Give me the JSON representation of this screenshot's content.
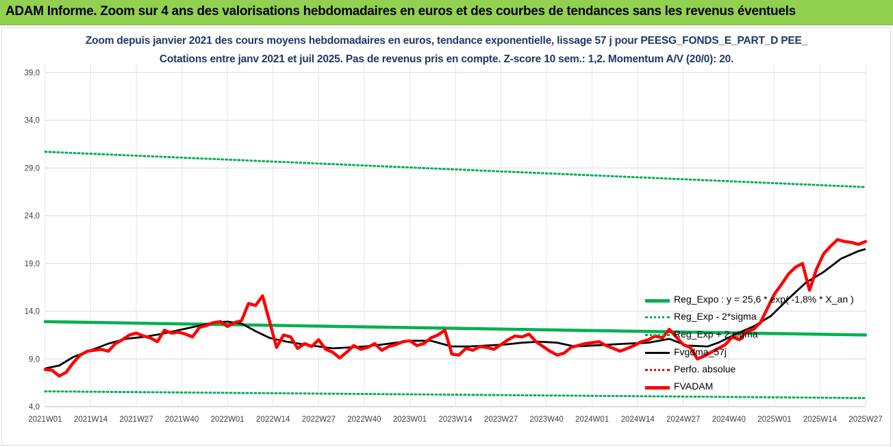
{
  "banner": {
    "title": "ADAM Informe. Zoom sur 4 ans des valorisations hebdomadaires en euros et des courbes de tendances sans les revenus éventuels"
  },
  "colors": {
    "banner_bg": "#92d050",
    "subtitle": "#1f3864",
    "trend_green": "#00b050",
    "sigma_green": "#00b050",
    "smooth_black": "#000000",
    "perf_red": "#ff0000",
    "price_red": "#ff0000",
    "grid": "#d9d9d9"
  },
  "chart_data": {
    "type": "line",
    "title_line1": "Zoom depuis janvier 2021 des cours moyens hebdomadaires en euros, tendance exponentielle, lissage 57 j pour PEESG_FONDS_E_PART_D PEE_",
    "title_line2": "Cotations entre janv 2021 et juil 2025. Pas de revenus pris en compte. Z-score 10 sem.: 1,2. Momentum A/V (20/0): 20.",
    "ylim": [
      4,
      40
    ],
    "y_ticks": [
      "4,0",
      "9,0",
      "14,0",
      "19,0",
      "24,0",
      "29,0",
      "34,0",
      "39,0"
    ],
    "y_tick_values": [
      4,
      9,
      14,
      19,
      24,
      29,
      34,
      39
    ],
    "x_ticks": [
      "2021W01",
      "2021W14",
      "2021W27",
      "2021W40",
      "2022W01",
      "2022W14",
      "2022W27",
      "2022W40",
      "2023W01",
      "2023W14",
      "2023W27",
      "2023W40",
      "2024W01",
      "2024W14",
      "2024W27",
      "2024W40",
      "2025W01",
      "2025W14",
      "2025W27"
    ],
    "grid": true,
    "legend_position": "bottom-right",
    "series": [
      {
        "name": "Reg_Expo : y = 25,6 * exp( -1,8% *  X_an )",
        "style": "solid-thick",
        "color": "#00b050",
        "x": [
          0,
          234
        ],
        "values": [
          12.9,
          11.5
        ]
      },
      {
        "name": "Reg_Exp - 2*sigma",
        "style": "dotted",
        "color": "#00b050",
        "x": [
          0,
          234
        ],
        "values": [
          5.6,
          4.9
        ]
      },
      {
        "name": "Reg_Exp + 2 sigma",
        "style": "dotted",
        "color": "#00b050",
        "x": [
          0,
          234
        ],
        "values": [
          30.7,
          27.0
        ]
      },
      {
        "name": "Fvgdma_57j",
        "style": "solid",
        "color": "#000000",
        "x": [
          0,
          4,
          8,
          13,
          18,
          23,
          28,
          33,
          38,
          43,
          48,
          52,
          56,
          60,
          64,
          69,
          74,
          78,
          82,
          87,
          91,
          96,
          100,
          105,
          110,
          116,
          121,
          126,
          131,
          136,
          141,
          146,
          151,
          156,
          161,
          166,
          172,
          178,
          183,
          189,
          192,
          197,
          202,
          207,
          212,
          217,
          222,
          227,
          232,
          234
        ],
        "values": [
          8.0,
          8.3,
          9.2,
          9.9,
          10.6,
          11.1,
          11.3,
          11.6,
          12.0,
          12.4,
          12.8,
          12.9,
          12.7,
          11.9,
          11.2,
          10.8,
          10.5,
          10.3,
          10.1,
          10.2,
          10.3,
          10.5,
          10.7,
          10.9,
          10.9,
          10.3,
          10.3,
          10.4,
          10.5,
          10.7,
          10.8,
          10.7,
          10.3,
          10.4,
          10.5,
          10.6,
          10.7,
          11.1,
          10.4,
          10.3,
          10.7,
          11.6,
          12.4,
          13.5,
          15.3,
          17.0,
          18.1,
          19.5,
          20.3,
          20.5
        ]
      },
      {
        "name": "Perfo. absolue",
        "style": "dotted",
        "color": "#ff0000",
        "x": [],
        "values": []
      },
      {
        "name": "FVADAM",
        "style": "solid-thick",
        "color": "#ff0000",
        "x": [
          0,
          2,
          4,
          6,
          8,
          10,
          12,
          14,
          16,
          18,
          20,
          22,
          24,
          26,
          28,
          30,
          32,
          34,
          36,
          38,
          40,
          42,
          44,
          46,
          48,
          50,
          52,
          54,
          56,
          58,
          60,
          62,
          64,
          66,
          68,
          70,
          72,
          74,
          76,
          78,
          80,
          82,
          84,
          86,
          88,
          90,
          92,
          94,
          96,
          98,
          100,
          102,
          104,
          106,
          108,
          110,
          112,
          114,
          116,
          118,
          120,
          122,
          124,
          126,
          128,
          130,
          132,
          134,
          136,
          138,
          140,
          142,
          144,
          146,
          148,
          150,
          152,
          154,
          156,
          158,
          160,
          162,
          164,
          166,
          168,
          170,
          172,
          174,
          176,
          178,
          180,
          182,
          184,
          186,
          188,
          190,
          192,
          194,
          196,
          198,
          200,
          202,
          204,
          206,
          208,
          210,
          212,
          214,
          216,
          218,
          220,
          222,
          224,
          226,
          228,
          230,
          232,
          234
        ],
        "values": [
          7.9,
          7.8,
          7.2,
          7.6,
          8.6,
          9.4,
          9.8,
          9.9,
          10.0,
          9.8,
          10.6,
          11.0,
          11.5,
          11.7,
          11.4,
          11.2,
          10.8,
          12.0,
          11.7,
          11.8,
          11.6,
          11.3,
          12.3,
          12.5,
          12.8,
          12.9,
          12.4,
          12.8,
          13.0,
          14.8,
          14.6,
          15.6,
          12.9,
          10.2,
          11.5,
          11.3,
          10.1,
          10.6,
          10.3,
          11.0,
          10.0,
          9.7,
          9.1,
          9.7,
          10.4,
          10.0,
          10.2,
          10.6,
          9.9,
          10.3,
          10.5,
          10.8,
          10.9,
          10.4,
          10.6,
          11.2,
          11.5,
          12.0,
          9.5,
          9.4,
          10.1,
          9.9,
          10.3,
          10.2,
          10.0,
          10.5,
          11.0,
          11.4,
          11.3,
          11.6,
          10.8,
          10.3,
          9.8,
          9.4,
          9.6,
          10.2,
          10.4,
          10.6,
          10.7,
          10.8,
          10.4,
          10.1,
          9.8,
          10.1,
          10.4,
          10.8,
          11.0,
          11.4,
          11.2,
          12.1,
          11.3,
          10.5,
          10.2,
          9.0,
          9.3,
          9.7,
          10.1,
          10.5,
          11.3,
          11.0,
          11.9,
          12.1,
          12.8,
          14.3,
          15.8,
          16.8,
          17.9,
          18.6,
          19.0,
          16.2,
          18.4,
          20.0,
          20.8,
          21.5,
          21.3,
          21.2,
          21.0,
          21.3
        ]
      }
    ]
  }
}
